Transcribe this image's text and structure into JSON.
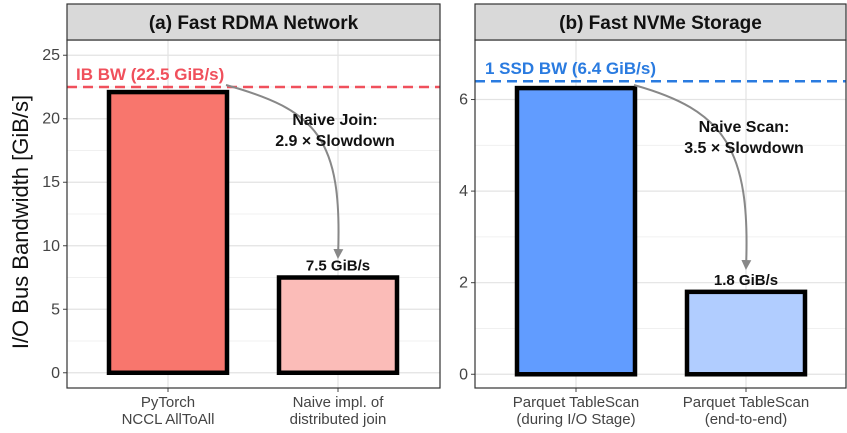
{
  "ylabel": "I/O Bus Bandwidth [GiB/s]",
  "chart_data": [
    {
      "type": "bar",
      "title": "(a) Fast RDMA Network",
      "categories": [
        "PyTorch\nNCCL AllToAll",
        "Naive impl. of\ndistributed join"
      ],
      "values": [
        22.1,
        7.5
      ],
      "colors": [
        "#f8766d",
        "#fbbcb8"
      ],
      "ylim": [
        -1.2,
        26.2
      ],
      "yticks": [
        0,
        5,
        10,
        15,
        20,
        25
      ],
      "reference_line": {
        "value": 22.5,
        "label": "IB BW (22.5 GiB/s)",
        "color": "#f0505c"
      },
      "data_labels": [
        "",
        "7.5 GiB/s"
      ],
      "annotation": {
        "lines": [
          "Naive Join:",
          "2.9 × Slowdown"
        ]
      },
      "grid": true
    },
    {
      "type": "bar",
      "title": "(b) Fast NVMe Storage",
      "categories": [
        "Parquet TableScan\n(during I/O Stage)",
        "Parquet TableScan\n(end-to-end)"
      ],
      "values": [
        6.25,
        1.8
      ],
      "colors": [
        "#619cff",
        "#b1cdff"
      ],
      "ylim": [
        -0.3,
        7.3
      ],
      "yticks": [
        0,
        2,
        4,
        6
      ],
      "reference_line": {
        "value": 6.4,
        "label": "1 SSD BW (6.4 GiB/s)",
        "color": "#2a7be0"
      },
      "data_labels": [
        "",
        "1.8 GiB/s"
      ],
      "annotation": {
        "lines": [
          "Naive Scan:",
          "3.5 × Slowdown"
        ]
      },
      "grid": true
    }
  ]
}
